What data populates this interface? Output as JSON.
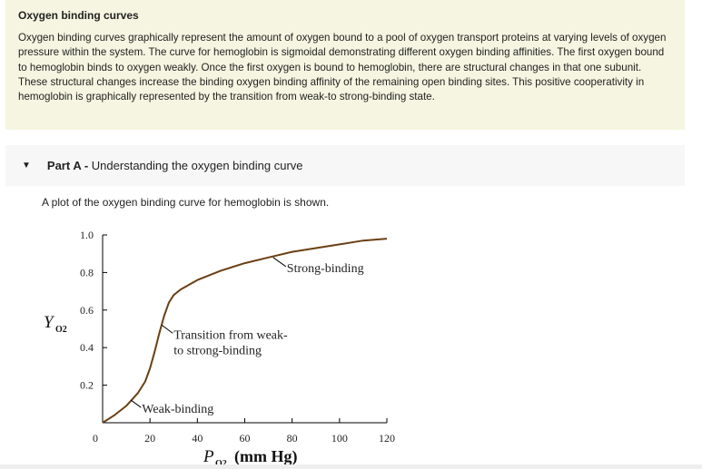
{
  "intro": {
    "title": "Oxygen binding curves",
    "text": "Oxygen binding curves graphically represent the amount of oxygen bound to a pool of oxygen transport proteins at varying levels of oxygen pressure within the system. The curve for hemoglobin is sigmoidal demonstrating different oxygen binding affinities. The first oxygen bound to hemoglobin binds to oxygen weakly. Once the first oxygen is bound to hemoglobin, there are structural changes in that one subunit. These structural changes increase the binding oxygen binding affinity of the remaining open binding sites. This positive cooperativity in hemoglobin is graphically represented by the transition from weak-to strong-binding state."
  },
  "part": {
    "label": "Part A -",
    "title": "Understanding the oxygen binding curve",
    "prompt": "A plot of the oxygen binding curve for hemoglobin is shown."
  },
  "chart_data": {
    "type": "line",
    "xlabel": "P",
    "xlabel_sub": "O2",
    "xunit": "(mm Hg)",
    "ylabel": "Y",
    "ylabel_sub": "O2",
    "xlim": [
      0,
      120
    ],
    "ylim": [
      0,
      1.0
    ],
    "xticks": [
      "0",
      "20",
      "40",
      "60",
      "80",
      "100",
      "120"
    ],
    "yticks": [
      "0.2",
      "0.4",
      "0.6",
      "0.8",
      "1.0"
    ],
    "grid": false,
    "color": "#6b3f12",
    "x": [
      0,
      5,
      10,
      15,
      18,
      20,
      22,
      24,
      26,
      28,
      30,
      33,
      40,
      50,
      60,
      70,
      80,
      90,
      100,
      110,
      120
    ],
    "y": [
      0,
      0.04,
      0.09,
      0.16,
      0.22,
      0.29,
      0.38,
      0.48,
      0.57,
      0.64,
      0.68,
      0.71,
      0.76,
      0.81,
      0.85,
      0.88,
      0.91,
      0.93,
      0.95,
      0.97,
      0.98
    ],
    "annotations": [
      {
        "text": "Weak-binding",
        "x": 12,
        "y": 0.12
      },
      {
        "text": "Transition from weak-",
        "text2": "to strong-binding",
        "x": 25,
        "y": 0.52
      },
      {
        "text": "Strong-binding",
        "x": 72,
        "y": 0.88
      }
    ]
  }
}
